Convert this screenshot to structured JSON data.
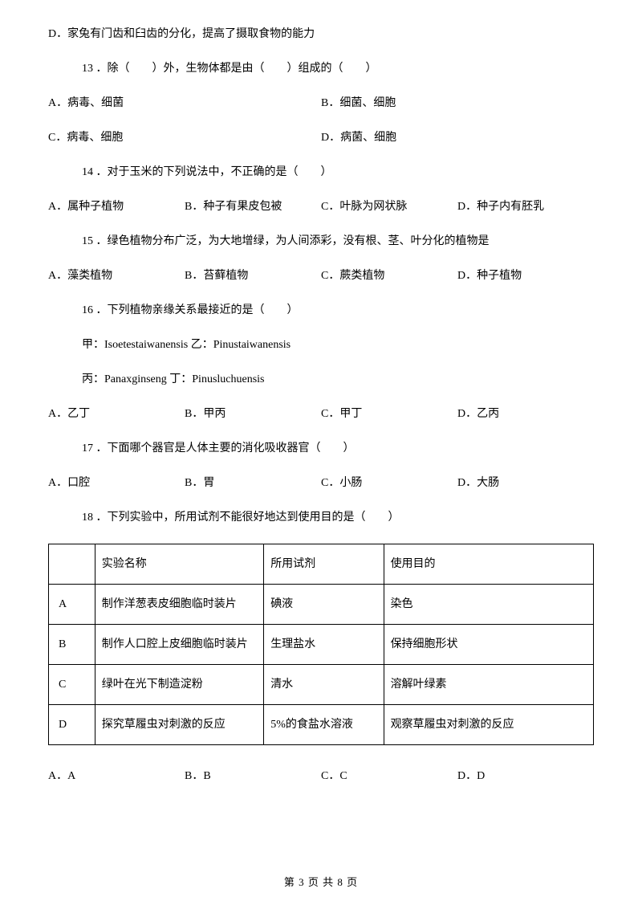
{
  "q12_option_d": "D．家兔有门齿和臼齿的分化，提高了摄取食物的能力",
  "q13": {
    "stem": "13 ．除（　　）外，生物体都是由（　　）组成的（　　）",
    "a": "A．病毒、细菌",
    "b": "B．细菌、细胞",
    "c": "C．病毒、细胞",
    "d": "D．病菌、细胞"
  },
  "q14": {
    "stem": "14 ．对于玉米的下列说法中，不正确的是（　　）",
    "a": "A．属种子植物",
    "b": "B．种子有果皮包被",
    "c": "C．叶脉为网状脉",
    "d": "D．种子内有胚乳"
  },
  "q15": {
    "stem": "15 ．绿色植物分布广泛，为大地增绿，为人间添彩，没有根、茎、叶分化的植物是",
    "a": "A．藻类植物",
    "b": "B．苔藓植物",
    "c": "C．蕨类植物",
    "d": "D．种子植物"
  },
  "q16": {
    "stem": "16 ．下列植物亲缘关系最接近的是（　　）",
    "line1": "甲：Isoetestaiwanensis 乙：Pinustaiwanensis",
    "line2": "丙：Panaxginseng 丁：Pinusluchuensis",
    "a": "A．乙丁",
    "b": "B．甲丙",
    "c": "C．甲丁",
    "d": "D．乙丙"
  },
  "q17": {
    "stem": "17 ．下面哪个器官是人体主要的消化吸收器官（　　）",
    "a": "A．口腔",
    "b": "B．胃",
    "c": "C．小肠",
    "d": "D．大肠"
  },
  "q18": {
    "stem": "18 ．下列实验中，所用试剂不能很好地达到使用目的是（　　）",
    "headers": {
      "c1": "实验名称",
      "c2": "所用试剂",
      "c3": "使用目的"
    },
    "rows": [
      {
        "k": "A",
        "c1": "制作洋葱表皮细胞临时装片",
        "c2": "碘液",
        "c3": "染色"
      },
      {
        "k": "B",
        "c1": "制作人口腔上皮细胞临时装片",
        "c2": "生理盐水",
        "c3": "保持细胞形状"
      },
      {
        "k": "C",
        "c1": "绿叶在光下制造淀粉",
        "c2": "清水",
        "c3": "溶解叶绿素"
      },
      {
        "k": "D",
        "c1": "探究草履虫对刺激的反应",
        "c2": "5%的食盐水溶液",
        "c3": "观察草履虫对刺激的反应"
      }
    ],
    "a": "A．A",
    "b": "B．B",
    "c": "C．C",
    "d": "D．D"
  },
  "footer": "第 3 页 共 8 页"
}
